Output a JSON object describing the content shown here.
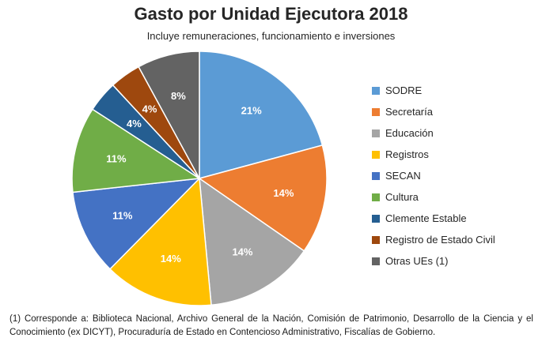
{
  "chart_data": {
    "type": "pie",
    "title": "Gasto por Unidad Ejecutora 2018",
    "subtitle": "Incluye remuneraciones, funcionamiento e inversiones",
    "categories": [
      "SODRE",
      "Secretaría",
      "Educación",
      "Registros",
      "SECAN",
      "Cultura",
      "Clemente Estable",
      "Registro de Estado Civil",
      "Otras UEs (1)"
    ],
    "values": [
      21,
      14,
      14,
      14,
      11,
      11,
      4,
      4,
      8
    ],
    "labels": [
      "21%",
      "14%",
      "14%",
      "14%",
      "11%",
      "11%",
      "4%",
      "4%",
      "8%"
    ],
    "colors": [
      "#5B9BD5",
      "#ED7D31",
      "#A5A5A5",
      "#FFC000",
      "#4472C4",
      "#70AD47",
      "#255E91",
      "#9E480E",
      "#636363"
    ],
    "legend_position": "right",
    "start": "top, clockwise"
  },
  "footnote": "(1) Corresponde a: Biblioteca Nacional, Archivo General de la Nación, Comisión de Patrimonio, Desarrollo de la Ciencia y el Conocimiento (ex DICYT), Procuraduría de Estado en Contencioso Administrativo, Fiscalías de Gobierno."
}
